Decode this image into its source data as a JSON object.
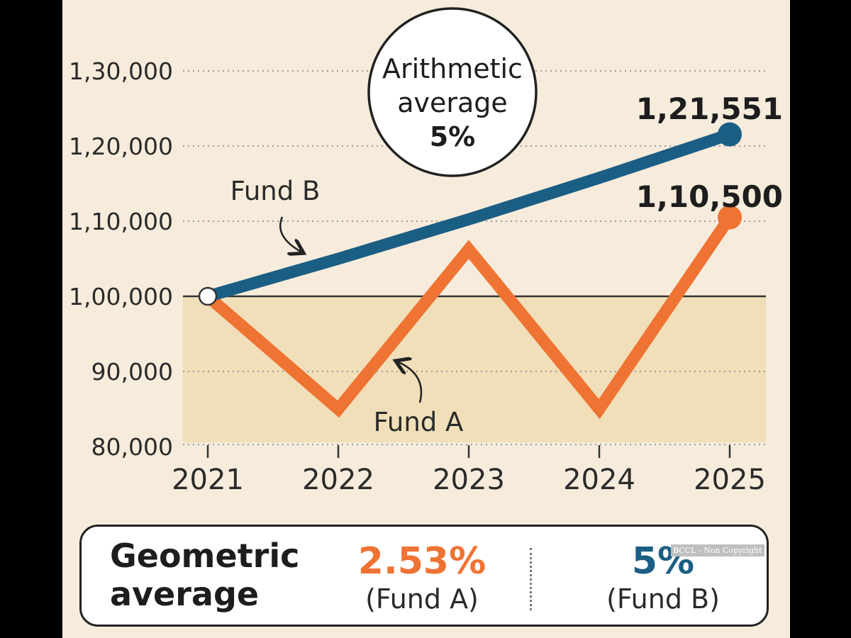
{
  "chart_data": {
    "type": "line",
    "categories": [
      "2021",
      "2022",
      "2023",
      "2024",
      "2025"
    ],
    "yticks": [
      "80,000",
      "90,000",
      "1,00,000",
      "1,10,000",
      "1,20,000",
      "1,30,000"
    ],
    "ytick_values": [
      80000,
      90000,
      100000,
      110000,
      120000,
      130000
    ],
    "ylim": [
      80000,
      130000
    ],
    "baseline": 100000,
    "grid": "dotted horizontal",
    "series": [
      {
        "name": "Fund B",
        "color": "#1b5e84",
        "values": [
          100000,
          105000,
          110250,
          115763,
          121551
        ],
        "end_label": "1,21,551"
      },
      {
        "name": "Fund A",
        "color": "#ef7333",
        "values": [
          100000,
          85000,
          106250,
          85000,
          110500
        ],
        "end_label": "1,10,500"
      }
    ],
    "annotation": {
      "line1": "Arithmetic",
      "line2": "average",
      "value": "5%"
    }
  },
  "geometric": {
    "title": "Geometric\naverage",
    "fund_a": {
      "value": "2.53%",
      "label": "(Fund A)",
      "color": "#ef7333"
    },
    "fund_b": {
      "value": "5%",
      "label": "(Fund B)",
      "color": "#1b5e84"
    }
  },
  "watermark": "BCCL - Non Copyright"
}
